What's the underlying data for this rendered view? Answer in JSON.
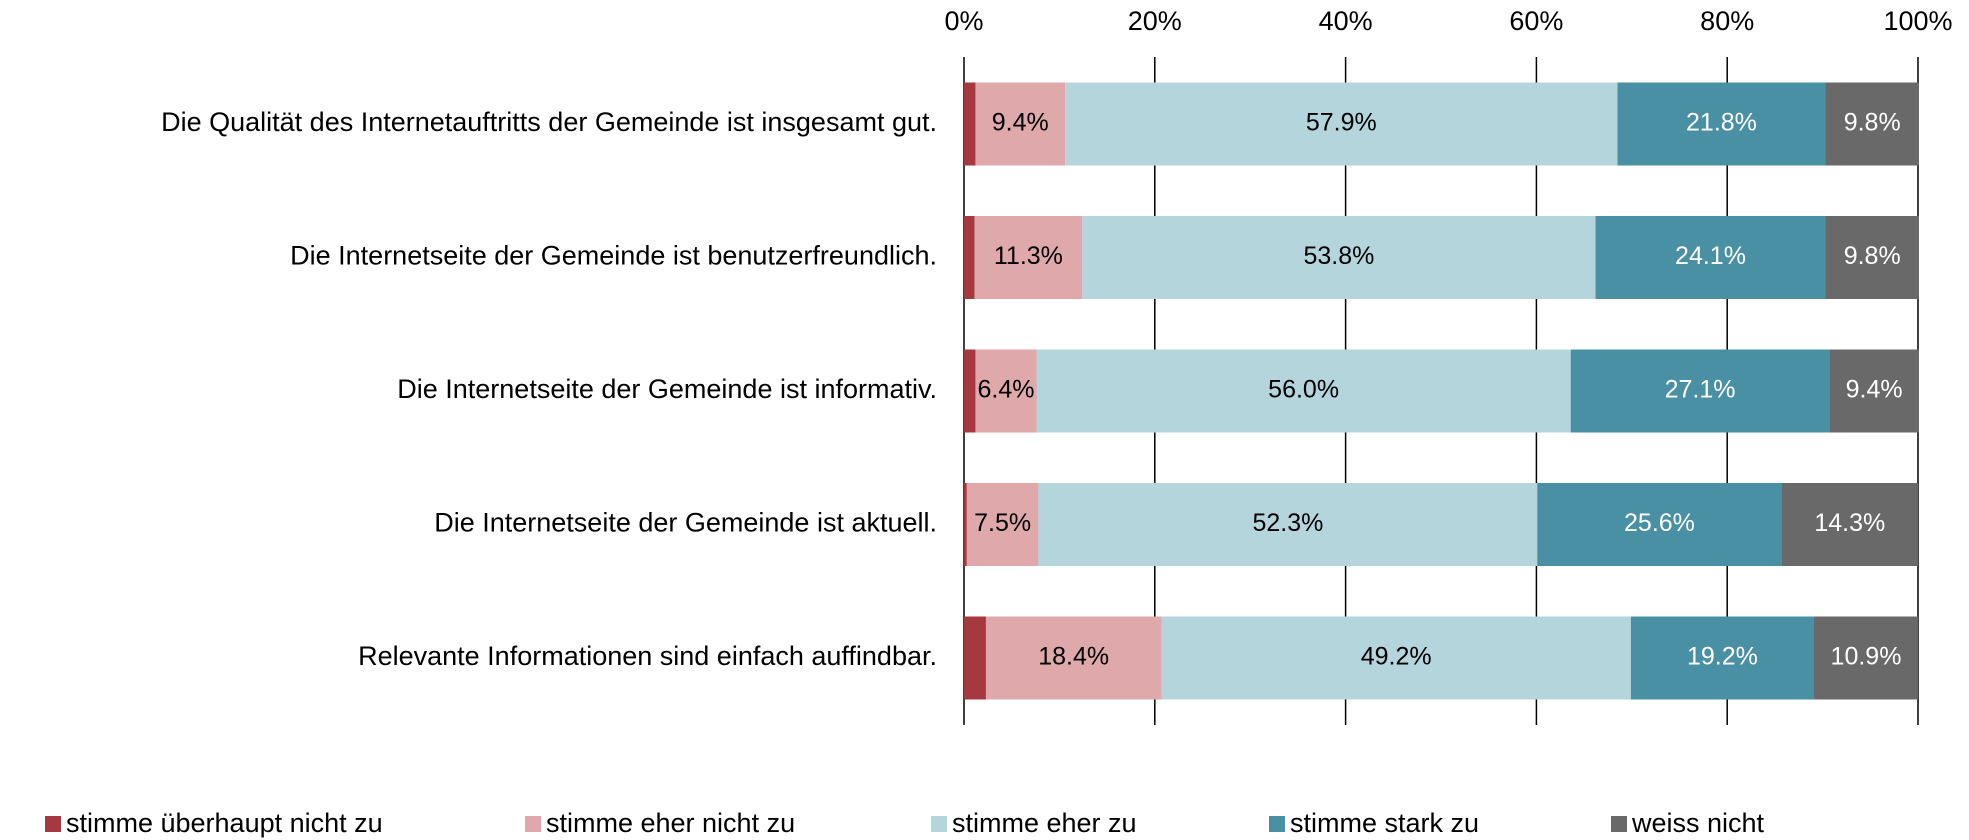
{
  "chart_data": {
    "type": "stacked_barh",
    "categories": [
      "Die Qualität des Internetauftritts der Gemeinde ist insgesamt gut.",
      "Die Internetseite der Gemeinde ist benutzerfreundlich.",
      "Die Internetseite der Gemeinde ist informativ.",
      "Die Internetseite der Gemeinde ist aktuell.",
      "Relevante Informationen sind einfach auffindbar."
    ],
    "series": [
      {
        "name": "stimme überhaupt nicht zu",
        "color": "#a5393f",
        "values": [
          1.2,
          1.1,
          1.2,
          0.3,
          2.3
        ]
      },
      {
        "name": "stimme eher nicht zu",
        "color": "#dfa8aa",
        "label_color": "#000000",
        "values": [
          9.4,
          11.3,
          6.4,
          7.5,
          18.4
        ],
        "value_labels": [
          "9.4%",
          "11.3%",
          "6.4%",
          "7.5%",
          "18.4%"
        ]
      },
      {
        "name": "stimme eher zu",
        "color": "#b5d5dc",
        "label_color": "#000000",
        "values": [
          57.9,
          53.8,
          56.0,
          52.3,
          49.2
        ],
        "value_labels": [
          "57.9%",
          "53.8%",
          "56.0%",
          "52.3%",
          "49.2%"
        ]
      },
      {
        "name": "stimme stark zu",
        "color": "#4a90a4",
        "label_color": "#ffffff",
        "values": [
          21.8,
          24.1,
          27.1,
          25.6,
          19.2
        ],
        "value_labels": [
          "21.8%",
          "24.1%",
          "27.1%",
          "25.6%",
          "19.2%"
        ]
      },
      {
        "name": "weiss nicht",
        "color": "#696969",
        "label_color": "#ffffff",
        "values": [
          9.8,
          9.8,
          9.4,
          14.3,
          10.9
        ],
        "value_labels": [
          "9.8%",
          "9.8%",
          "9.4%",
          "14.3%",
          "10.9%"
        ]
      }
    ],
    "xlim": [
      0,
      100
    ],
    "xticks": [
      {
        "value": 0,
        "label": "0%"
      },
      {
        "value": 20,
        "label": "20%"
      },
      {
        "value": 40,
        "label": "40%"
      },
      {
        "value": 60,
        "label": "60%"
      },
      {
        "value": 80,
        "label": "80%"
      },
      {
        "value": 100,
        "label": "100%"
      }
    ],
    "grid": true,
    "legend": "bottom"
  }
}
